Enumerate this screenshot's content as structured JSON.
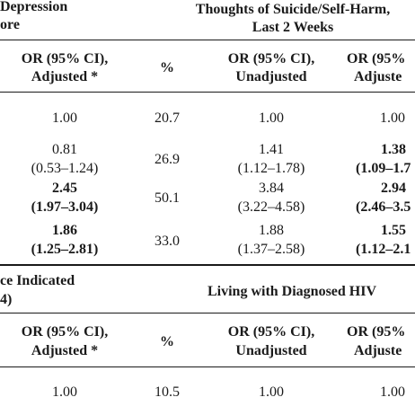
{
  "section1": {
    "left_heading": [
      "Depression",
      "ore"
    ],
    "right_heading": [
      "Thoughts of Suicide/Self-Harm,",
      "Last 2 Weeks"
    ],
    "columns": [
      [
        "OR (95% CI),",
        "Adjusted *"
      ],
      [
        "%"
      ],
      [
        "OR (95% CI),",
        "Unadjusted"
      ],
      [
        "OR (95%",
        "Adjuste"
      ]
    ],
    "rows": [
      {
        "c1": [
          "1.00",
          ""
        ],
        "c1_bold": false,
        "pct": "20.7",
        "c3": [
          "1.00",
          ""
        ],
        "c4": [
          "1.00",
          ""
        ],
        "c4_bold": false
      },
      {
        "c1": [
          "0.81",
          "(0.53–1.24)"
        ],
        "c1_bold": false,
        "pct": "26.9",
        "c3": [
          "1.41",
          "(1.12–1.78)"
        ],
        "c4": [
          "1.38",
          "(1.09–1.7"
        ],
        "c4_bold": true
      },
      {
        "c1": [
          "2.45",
          "(1.97–3.04)"
        ],
        "c1_bold": true,
        "pct": "50.1",
        "c3": [
          "3.84",
          "(3.22–4.58)"
        ],
        "c4": [
          "2.94",
          "(2.46–3.5"
        ],
        "c4_bold": true
      },
      {
        "c1": [
          "1.86",
          "(1.25–2.81)"
        ],
        "c1_bold": true,
        "pct": "33.0",
        "c3": [
          "1.88",
          "(1.37–2.58)"
        ],
        "c4": [
          "1.55",
          "(1.12–2.1"
        ],
        "c4_bold": true
      }
    ]
  },
  "section2": {
    "left_heading": [
      "ce Indicated",
      "4)"
    ],
    "right_heading": [
      "Living with Diagnosed HIV"
    ],
    "columns": [
      [
        "OR (95% CI),",
        "Adjusted *"
      ],
      [
        "%"
      ],
      [
        "OR (95% CI),",
        "Unadjusted"
      ],
      [
        "OR (95%",
        "Adjuste"
      ]
    ],
    "rows": [
      {
        "c1": [
          "1.00"
        ],
        "pct": "10.5",
        "c3": [
          "1.00"
        ],
        "c4": [
          "1.00"
        ]
      }
    ]
  }
}
